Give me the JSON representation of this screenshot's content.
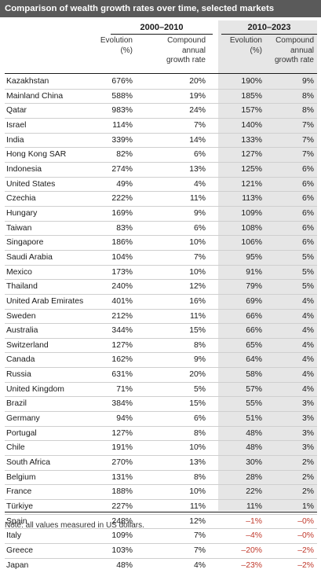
{
  "title": "Comparison of wealth growth rates over time, selected markets",
  "periods": [
    "2000–2010",
    "2010–2023"
  ],
  "columns": {
    "evolution": [
      "Evolution",
      "(%)"
    ],
    "cagr": [
      "Compound",
      "annual",
      "growth rate"
    ]
  },
  "rows": [
    {
      "market": "Kazakhstan",
      "evo_2000_2010": "676%",
      "cagr_2000_2010": "20%",
      "evo_2010_2023": "190%",
      "cagr_2010_2023": "9%"
    },
    {
      "market": "Mainland China",
      "evo_2000_2010": "588%",
      "cagr_2000_2010": "19%",
      "evo_2010_2023": "185%",
      "cagr_2010_2023": "8%"
    },
    {
      "market": "Qatar",
      "evo_2000_2010": "983%",
      "cagr_2000_2010": "24%",
      "evo_2010_2023": "157%",
      "cagr_2010_2023": "8%"
    },
    {
      "market": "Israel",
      "evo_2000_2010": "114%",
      "cagr_2000_2010": "7%",
      "evo_2010_2023": "140%",
      "cagr_2010_2023": "7%"
    },
    {
      "market": "India",
      "evo_2000_2010": "339%",
      "cagr_2000_2010": "14%",
      "evo_2010_2023": "133%",
      "cagr_2010_2023": "7%"
    },
    {
      "market": "Hong Kong SAR",
      "evo_2000_2010": "82%",
      "cagr_2000_2010": "6%",
      "evo_2010_2023": "127%",
      "cagr_2010_2023": "7%"
    },
    {
      "market": "Indonesia",
      "evo_2000_2010": "274%",
      "cagr_2000_2010": "13%",
      "evo_2010_2023": "125%",
      "cagr_2010_2023": "6%"
    },
    {
      "market": "United States",
      "evo_2000_2010": "49%",
      "cagr_2000_2010": "4%",
      "evo_2010_2023": "121%",
      "cagr_2010_2023": "6%"
    },
    {
      "market": "Czechia",
      "evo_2000_2010": "222%",
      "cagr_2000_2010": "11%",
      "evo_2010_2023": "113%",
      "cagr_2010_2023": "6%"
    },
    {
      "market": "Hungary",
      "evo_2000_2010": "169%",
      "cagr_2000_2010": "9%",
      "evo_2010_2023": "109%",
      "cagr_2010_2023": "6%"
    },
    {
      "market": "Taiwan",
      "evo_2000_2010": "83%",
      "cagr_2000_2010": "6%",
      "evo_2010_2023": "108%",
      "cagr_2010_2023": "6%"
    },
    {
      "market": "Singapore",
      "evo_2000_2010": "186%",
      "cagr_2000_2010": "10%",
      "evo_2010_2023": "106%",
      "cagr_2010_2023": "6%"
    },
    {
      "market": "Saudi Arabia",
      "evo_2000_2010": "104%",
      "cagr_2000_2010": "7%",
      "evo_2010_2023": "95%",
      "cagr_2010_2023": "5%"
    },
    {
      "market": "Mexico",
      "evo_2000_2010": "173%",
      "cagr_2000_2010": "10%",
      "evo_2010_2023": "91%",
      "cagr_2010_2023": "5%"
    },
    {
      "market": "Thailand",
      "evo_2000_2010": "240%",
      "cagr_2000_2010": "12%",
      "evo_2010_2023": "79%",
      "cagr_2010_2023": "5%"
    },
    {
      "market": "United Arab Emirates",
      "evo_2000_2010": "401%",
      "cagr_2000_2010": "16%",
      "evo_2010_2023": "69%",
      "cagr_2010_2023": "4%"
    },
    {
      "market": "Sweden",
      "evo_2000_2010": "212%",
      "cagr_2000_2010": "11%",
      "evo_2010_2023": "66%",
      "cagr_2010_2023": "4%"
    },
    {
      "market": "Australia",
      "evo_2000_2010": "344%",
      "cagr_2000_2010": "15%",
      "evo_2010_2023": "66%",
      "cagr_2010_2023": "4%"
    },
    {
      "market": "Switzerland",
      "evo_2000_2010": "127%",
      "cagr_2000_2010": "8%",
      "evo_2010_2023": "65%",
      "cagr_2010_2023": "4%"
    },
    {
      "market": "Canada",
      "evo_2000_2010": "162%",
      "cagr_2000_2010": "9%",
      "evo_2010_2023": "64%",
      "cagr_2010_2023": "4%"
    },
    {
      "market": "Russia",
      "evo_2000_2010": "631%",
      "cagr_2000_2010": "20%",
      "evo_2010_2023": "58%",
      "cagr_2010_2023": "4%"
    },
    {
      "market": "United Kingdom",
      "evo_2000_2010": "71%",
      "cagr_2000_2010": "5%",
      "evo_2010_2023": "57%",
      "cagr_2010_2023": "4%"
    },
    {
      "market": "Brazil",
      "evo_2000_2010": "384%",
      "cagr_2000_2010": "15%",
      "evo_2010_2023": "55%",
      "cagr_2010_2023": "3%"
    },
    {
      "market": "Germany",
      "evo_2000_2010": "94%",
      "cagr_2000_2010": "6%",
      "evo_2010_2023": "51%",
      "cagr_2010_2023": "3%"
    },
    {
      "market": "Portugal",
      "evo_2000_2010": "127%",
      "cagr_2000_2010": "8%",
      "evo_2010_2023": "48%",
      "cagr_2010_2023": "3%"
    },
    {
      "market": "Chile",
      "evo_2000_2010": "191%",
      "cagr_2000_2010": "10%",
      "evo_2010_2023": "48%",
      "cagr_2010_2023": "3%"
    },
    {
      "market": "South Africa",
      "evo_2000_2010": "270%",
      "cagr_2000_2010": "13%",
      "evo_2010_2023": "30%",
      "cagr_2010_2023": "2%"
    },
    {
      "market": "Belgium",
      "evo_2000_2010": "131%",
      "cagr_2000_2010": "8%",
      "evo_2010_2023": "28%",
      "cagr_2010_2023": "2%"
    },
    {
      "market": "France",
      "evo_2000_2010": "188%",
      "cagr_2000_2010": "10%",
      "evo_2010_2023": "22%",
      "cagr_2010_2023": "2%"
    },
    {
      "market": "Türkiye",
      "evo_2000_2010": "227%",
      "cagr_2000_2010": "11%",
      "evo_2010_2023": "11%",
      "cagr_2010_2023": "1%"
    },
    {
      "market": "Spain",
      "evo_2000_2010": "248%",
      "cagr_2000_2010": "12%",
      "evo_2010_2023": "–1%",
      "cagr_2010_2023": "–0%"
    },
    {
      "market": "Italy",
      "evo_2000_2010": "109%",
      "cagr_2000_2010": "7%",
      "evo_2010_2023": "–4%",
      "cagr_2010_2023": "–0%"
    },
    {
      "market": "Greece",
      "evo_2000_2010": "103%",
      "cagr_2000_2010": "7%",
      "evo_2010_2023": "–20%",
      "cagr_2010_2023": "–2%"
    },
    {
      "market": "Japan",
      "evo_2000_2010": "48%",
      "cagr_2000_2010": "4%",
      "evo_2010_2023": "–23%",
      "cagr_2010_2023": "–2%"
    }
  ],
  "note": "Note: all values measured in US dollars.",
  "colors": {
    "title_bg": "#5a5a5a",
    "shade": "#e6e6e6",
    "negative": "#c0392b"
  }
}
